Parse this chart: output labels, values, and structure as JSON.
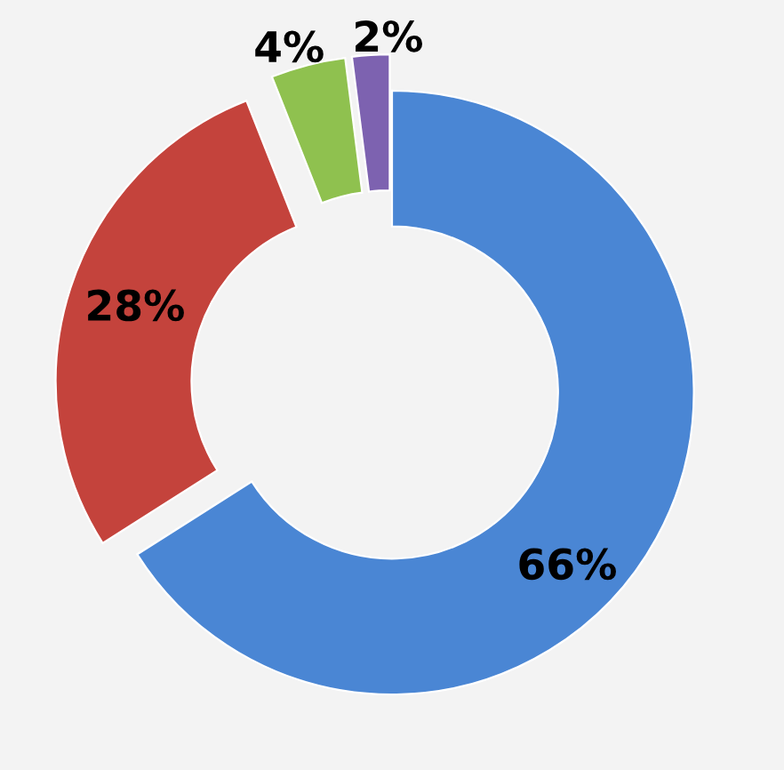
{
  "chart_data": {
    "type": "donut",
    "categories": [
      null,
      null,
      null,
      null
    ],
    "values": [
      66,
      28,
      4,
      2
    ],
    "colors": [
      "#4a86d4",
      "#c4433c",
      "#8fc14f",
      "#7d62b0"
    ],
    "value_labels": [
      "66%",
      "28%",
      "4%",
      "2%"
    ]
  }
}
